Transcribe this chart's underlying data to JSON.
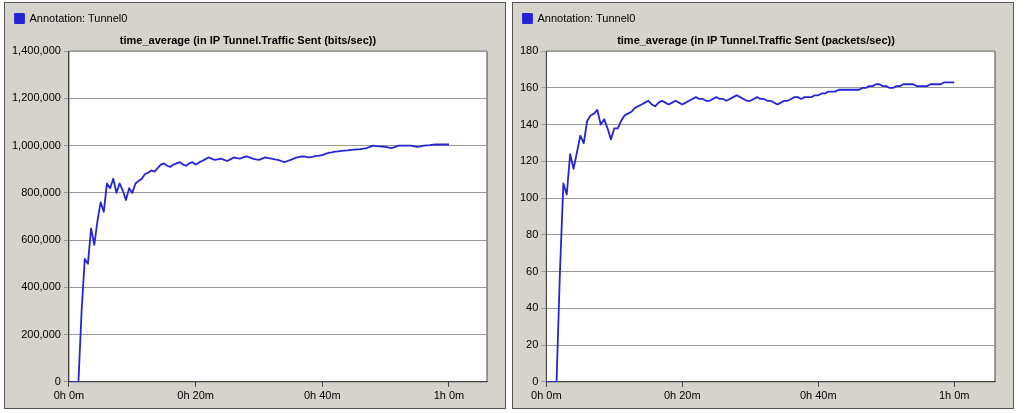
{
  "chart_data": [
    {
      "type": "line",
      "title": "time_average (in IP Tunnel.Traffic Sent (bits/sec))",
      "categories": [
        "0h 0m",
        null,
        null,
        null,
        null,
        null,
        null,
        null,
        null,
        null,
        null,
        null,
        null,
        null,
        null,
        null,
        null,
        null,
        null,
        null,
        null,
        null,
        null,
        null,
        null,
        null,
        null,
        null,
        null,
        null,
        null,
        null,
        null,
        null,
        null,
        null,
        null,
        null,
        null,
        null,
        "0h 20m",
        null,
        null,
        null,
        null,
        null,
        null,
        null,
        null,
        null,
        null,
        null,
        null,
        null,
        null,
        null,
        null,
        null,
        null,
        null,
        null,
        null,
        null,
        null,
        null,
        null,
        null,
        null,
        null,
        null,
        null,
        null,
        null,
        null,
        null,
        null,
        null,
        null,
        null,
        null,
        "0h 40m",
        null,
        null,
        null,
        null,
        null,
        null,
        null,
        null,
        null,
        null,
        null,
        null,
        null,
        null,
        null,
        null,
        null,
        null,
        null,
        null,
        null,
        null,
        null,
        null,
        null,
        null,
        null,
        null,
        null,
        null,
        null,
        null,
        null,
        null,
        null,
        null,
        null,
        null,
        null,
        "1h 0m",
        null,
        null,
        null,
        null,
        null,
        null,
        null,
        null,
        null,
        null,
        null,
        null
      ],
      "series": [
        {
          "name": "Annotation: Tunnel0",
          "color": "#2424d8",
          "values": [
            0,
            0,
            0,
            0,
            300000,
            520000,
            500000,
            650000,
            580000,
            680000,
            760000,
            720000,
            840000,
            820000,
            860000,
            800000,
            840000,
            810000,
            770000,
            820000,
            800000,
            840000,
            850000,
            860000,
            880000,
            885000,
            895000,
            890000,
            905000,
            920000,
            925000,
            915000,
            910000,
            920000,
            925000,
            930000,
            920000,
            915000,
            925000,
            930000,
            920000,
            928000,
            935000,
            942000,
            950000,
            945000,
            940000,
            942000,
            945000,
            940000,
            935000,
            942000,
            950000,
            947000,
            945000,
            950000,
            955000,
            950000,
            945000,
            942000,
            940000,
            945000,
            950000,
            947000,
            945000,
            942000,
            940000,
            935000,
            930000,
            935000,
            940000,
            945000,
            950000,
            953000,
            955000,
            952000,
            950000,
            953000,
            957000,
            958000,
            960000,
            965000,
            970000,
            972000,
            975000,
            976000,
            978000,
            979000,
            980000,
            982000,
            983000,
            984000,
            985000,
            987000,
            990000,
            995000,
            1000000,
            998000,
            997000,
            996000,
            995000,
            992000,
            990000,
            995000,
            1000000,
            1000000,
            1000000,
            1000000,
            1000000,
            997000,
            995000,
            997000,
            1000000,
            1001000,
            1002000,
            1004000,
            1005000,
            1005000,
            1005000,
            1005000,
            1005000,
            null,
            null,
            null,
            null,
            null,
            null,
            null,
            null,
            null,
            null,
            null,
            null
          ]
        }
      ],
      "ylim": [
        0,
        1400000
      ],
      "yticks": [
        {
          "value": 0,
          "label": "0"
        },
        {
          "value": 200000,
          "label": "200,000"
        },
        {
          "value": 400000,
          "label": "400,000"
        },
        {
          "value": 600000,
          "label": "600,000"
        },
        {
          "value": 800000,
          "label": "800,000"
        },
        {
          "value": 1000000,
          "label": "1,000,000"
        },
        {
          "value": 1200000,
          "label": "1,200,000"
        },
        {
          "value": 1400000,
          "label": "1,400,000"
        }
      ],
      "grid": "y",
      "legend": "top left",
      "marker": "none"
    },
    {
      "type": "line",
      "title": "time_average (in IP Tunnel.Traffic Sent (packets/sec))",
      "categories": [
        "0h 0m",
        null,
        null,
        null,
        null,
        null,
        null,
        null,
        null,
        null,
        null,
        null,
        null,
        null,
        null,
        null,
        null,
        null,
        null,
        null,
        null,
        null,
        null,
        null,
        null,
        null,
        null,
        null,
        null,
        null,
        null,
        null,
        null,
        null,
        null,
        null,
        null,
        null,
        null,
        null,
        "0h 20m",
        null,
        null,
        null,
        null,
        null,
        null,
        null,
        null,
        null,
        null,
        null,
        null,
        null,
        null,
        null,
        null,
        null,
        null,
        null,
        null,
        null,
        null,
        null,
        null,
        null,
        null,
        null,
        null,
        null,
        null,
        null,
        null,
        null,
        null,
        null,
        null,
        null,
        null,
        null,
        "0h 40m",
        null,
        null,
        null,
        null,
        null,
        null,
        null,
        null,
        null,
        null,
        null,
        null,
        null,
        null,
        null,
        null,
        null,
        null,
        null,
        null,
        null,
        null,
        null,
        null,
        null,
        null,
        null,
        null,
        null,
        null,
        null,
        null,
        null,
        null,
        null,
        null,
        null,
        null,
        null,
        "1h 0m",
        null,
        null,
        null,
        null,
        null,
        null,
        null,
        null,
        null,
        null,
        null,
        null
      ],
      "series": [
        {
          "name": "Annotation: Tunnel0",
          "color": "#2424d8",
          "values": [
            0,
            0,
            0,
            0,
            60,
            108,
            102,
            124,
            116,
            125,
            134,
            130,
            142,
            145,
            146,
            148,
            140,
            143,
            138,
            132,
            138,
            138,
            142,
            145,
            146,
            147,
            149,
            150,
            151,
            152,
            153,
            151,
            150,
            152,
            153,
            152,
            151,
            152,
            153,
            152,
            151,
            152,
            153,
            154,
            155,
            154,
            154,
            153,
            153,
            154,
            155,
            154,
            154,
            153,
            154,
            155,
            156,
            155,
            154,
            153,
            153,
            154,
            155,
            154,
            154,
            153,
            153,
            152,
            151,
            152,
            153,
            153,
            154,
            155,
            155,
            154,
            155,
            155,
            155,
            156,
            156,
            157,
            157,
            158,
            158,
            158,
            159,
            159,
            159,
            159,
            159,
            159,
            159,
            160,
            160,
            161,
            161,
            162,
            162,
            161,
            161,
            160,
            160,
            161,
            161,
            162,
            162,
            162,
            162,
            161,
            161,
            161,
            161,
            162,
            162,
            162,
            162,
            163,
            163,
            163,
            163,
            null,
            null,
            null,
            null,
            null,
            null,
            null,
            null,
            null,
            null,
            null,
            null
          ]
        }
      ],
      "ylim": [
        0,
        180
      ],
      "yticks": [
        0,
        20,
        40,
        60,
        80,
        100,
        120,
        140,
        160,
        180
      ],
      "grid": "y",
      "legend": "top left",
      "marker": "none"
    }
  ]
}
